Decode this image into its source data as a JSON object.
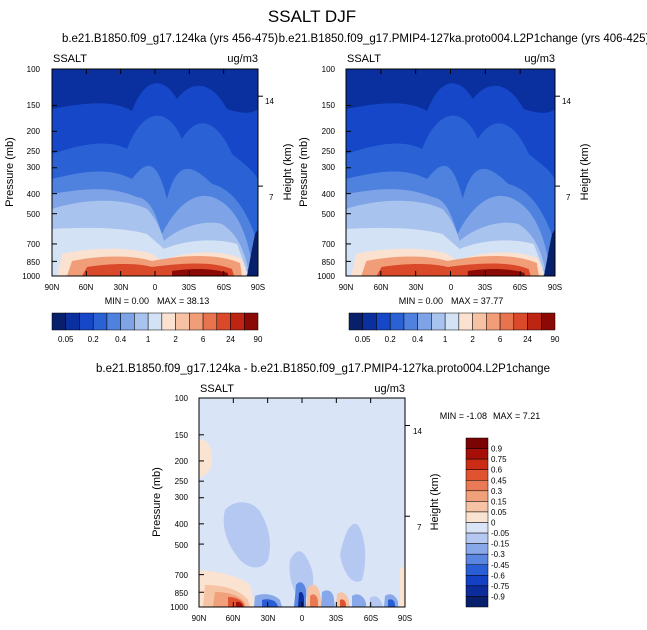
{
  "title": "SSALT DJF",
  "colors": {
    "absolute_scale": [
      "#08206b",
      "#0a2f9e",
      "#1547c8",
      "#2a62d6",
      "#4f82df",
      "#7ea3e7",
      "#a9c3ef",
      "#d4e2f6",
      "#fbe1cf",
      "#f7c2a3",
      "#f19d78",
      "#e7734f",
      "#d9492a",
      "#be2412",
      "#8c0a05"
    ],
    "diff_scale": [
      "#08206b",
      "#0b2c9a",
      "#1441c4",
      "#2a5ed6",
      "#5a85e0",
      "#89a8e9",
      "#b4c8f1",
      "#d9e5f7",
      "#fbe3d2",
      "#f6c3a4",
      "#f0a07a",
      "#e97a55",
      "#df5331",
      "#cb2c16",
      "#a50f08",
      "#7a0403"
    ]
  },
  "chart_data": [
    {
      "type": "heatmap",
      "title": "b.e21.B1850.f09_g17.124ka (yrs 456-475)",
      "variable_label": "SSALT",
      "units_label": "ug/m3",
      "xlabel": "",
      "ylabel": "Pressure (mb)",
      "ylabel_right": "Height (km)",
      "x_tick_labels": [
        "90N",
        "60N",
        "30N",
        "0",
        "30S",
        "60S",
        "90S"
      ],
      "y_tick_labels": [
        "100",
        "150",
        "200",
        "250",
        "300",
        "400",
        "500",
        "700",
        "850",
        "1000"
      ],
      "y_tick_values": [
        100,
        150,
        200,
        250,
        300,
        400,
        500,
        700,
        850,
        1000
      ],
      "right_tick_labels": [
        "14",
        "7"
      ],
      "right_tick_values": [
        14,
        7
      ],
      "xlim": [
        90,
        -90
      ],
      "ylim": [
        1000,
        100
      ],
      "min_label": "MIN =   0.00",
      "max_label": "MAX =  38.13",
      "min": 0.0,
      "max": 38.13,
      "colorbar_labels": [
        "0.05",
        "0.2",
        "0.4",
        "1",
        "2",
        "6",
        "24",
        "90"
      ],
      "colorbar_levels": [
        0.05,
        0.1,
        0.2,
        0.3,
        0.4,
        0.6,
        1,
        1.5,
        2,
        4,
        6,
        12,
        24,
        48,
        90
      ]
    },
    {
      "type": "heatmap",
      "title": "b.e21.B1850.f09_g17.PMIP4-127ka.proto004.L2P1change (yrs 406-425)",
      "variable_label": "SSALT",
      "units_label": "ug/m3",
      "xlabel": "",
      "ylabel": "Pressure (mb)",
      "ylabel_right": "Height (km)",
      "x_tick_labels": [
        "90N",
        "60N",
        "30N",
        "0",
        "30S",
        "60S",
        "90S"
      ],
      "y_tick_labels": [
        "100",
        "150",
        "200",
        "250",
        "300",
        "400",
        "500",
        "700",
        "850",
        "1000"
      ],
      "y_tick_values": [
        100,
        150,
        200,
        250,
        300,
        400,
        500,
        700,
        850,
        1000
      ],
      "right_tick_labels": [
        "14",
        "7"
      ],
      "right_tick_values": [
        14,
        7
      ],
      "xlim": [
        90,
        -90
      ],
      "ylim": [
        1000,
        100
      ],
      "min_label": "MIN =   0.00",
      "max_label": "MAX =  37.77",
      "min": 0.0,
      "max": 37.77,
      "colorbar_labels": [
        "0.05",
        "0.2",
        "0.4",
        "1",
        "2",
        "6",
        "24",
        "90"
      ],
      "colorbar_levels": [
        0.05,
        0.1,
        0.2,
        0.3,
        0.4,
        0.6,
        1,
        1.5,
        2,
        4,
        6,
        12,
        24,
        48,
        90
      ]
    },
    {
      "type": "heatmap",
      "title": "b.e21.B1850.f09_g17.124ka - b.e21.B1850.f09_g17.PMIP4-127ka.proto004.L2P1change",
      "variable_label": "SSALT",
      "units_label": "ug/m3",
      "xlabel": "",
      "ylabel": "Pressure (mb)",
      "ylabel_right": "Height (km)",
      "x_tick_labels": [
        "90N",
        "60N",
        "30N",
        "0",
        "30S",
        "60S",
        "90S"
      ],
      "y_tick_labels": [
        "100",
        "150",
        "200",
        "250",
        "300",
        "400",
        "500",
        "700",
        "850",
        "1000"
      ],
      "y_tick_values": [
        100,
        150,
        200,
        250,
        300,
        400,
        500,
        700,
        850,
        1000
      ],
      "right_tick_labels": [
        "14",
        "7"
      ],
      "right_tick_values": [
        14,
        7
      ],
      "xlim": [
        90,
        -90
      ],
      "ylim": [
        1000,
        100
      ],
      "min_label": "MIN =  -1.08",
      "max_label": "MAX =   7.21",
      "min": -1.08,
      "max": 7.21,
      "colorbar_labels": [
        "0.9",
        "0.75",
        "0.6",
        "0.45",
        "0.3",
        "0.15",
        "0.05",
        "0",
        "-0.05",
        "-0.15",
        "-0.3",
        "-0.45",
        "-0.6",
        "-0.75",
        "-0.9"
      ],
      "colorbar_levels": [
        0.9,
        0.75,
        0.6,
        0.45,
        0.3,
        0.15,
        0.05,
        0,
        -0.05,
        -0.15,
        -0.3,
        -0.45,
        -0.6,
        -0.75,
        -0.9
      ]
    }
  ]
}
